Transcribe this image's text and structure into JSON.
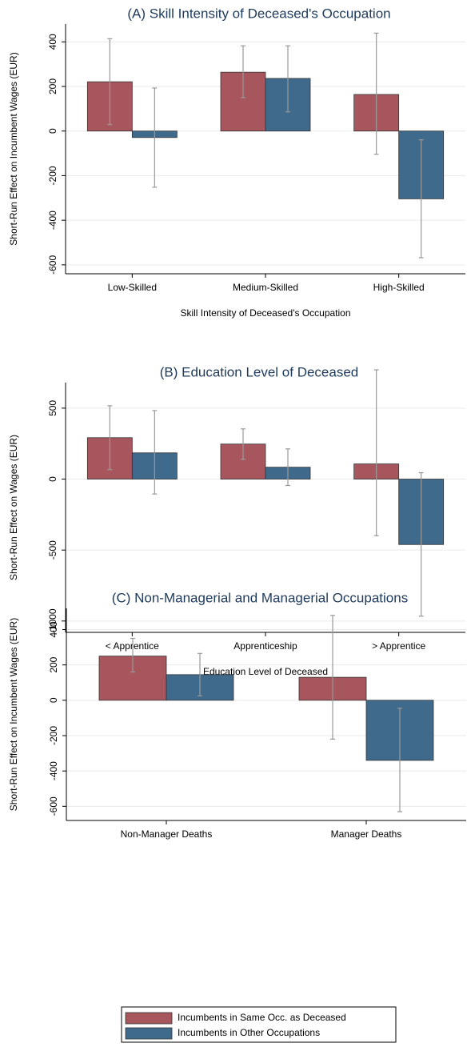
{
  "chart_data": [
    {
      "type": "bar",
      "title": "(A) Skill Intensity of Deceased's Occupation",
      "ylabel": "Short-Run Effect on Incumbent Wages (EUR)",
      "xlabel": "Skill Intensity of Deceased's Occupation",
      "categories": [
        "Low-Skilled",
        "Medium-Skilled",
        "High-Skilled"
      ],
      "series": [
        {
          "name": "Incumbents in Same Occ. as Deceased",
          "color": "#a8565e",
          "values": [
            221,
            264,
            164
          ],
          "ci_low": [
            29,
            150,
            -104
          ],
          "ci_high": [
            414,
            382,
            439
          ]
        },
        {
          "name": "Incumbents in Other Occupations",
          "color": "#3f6a8c",
          "values": [
            -29,
            236,
            -304
          ],
          "ci_low": [
            -252,
            86,
            -568
          ],
          "ci_high": [
            193,
            382,
            -39
          ]
        }
      ],
      "ylim": [
        -640,
        480
      ],
      "yticks": [
        -600,
        -400,
        -200,
        0,
        200,
        400
      ],
      "grid": true
    },
    {
      "type": "bar",
      "title": "(B) Education Level of Deceased",
      "ylabel": "Short-Run Effect on Wages (EUR)",
      "xlabel": "Education Level of Deceased",
      "categories": [
        "< Apprentice",
        "Apprenticeship",
        "> Apprentice"
      ],
      "series": [
        {
          "color": "#a8565e",
          "values": [
            292,
            247,
            107
          ],
          "ci_low": [
            67,
            140,
            -399
          ],
          "ci_high": [
            517,
            354,
            770
          ]
        },
        {
          "color": "#3f6a8c",
          "values": [
            185,
            84,
            -461
          ],
          "ci_low": [
            -105,
            -45,
            -966
          ],
          "ci_high": [
            483,
            213,
            45
          ]
        }
      ],
      "ylim": [
        -1080,
        680
      ],
      "yticks": [
        -1000,
        -500,
        0,
        500
      ],
      "grid": true
    },
    {
      "type": "bar",
      "title": "(C) Non-Managerial and Managerial Occupations",
      "ylabel": "Short-Run Effect on Incumbent Wages (EUR)",
      "categories": [
        "Non-Manager Deaths",
        "Manager Deaths"
      ],
      "series": [
        {
          "color": "#a8565e",
          "values": [
            250,
            130
          ],
          "ci_low": [
            160,
            -220
          ],
          "ci_high": [
            350,
            480
          ]
        },
        {
          "color": "#3f6a8c",
          "values": [
            145,
            -340
          ],
          "ci_low": [
            25,
            -630
          ],
          "ci_high": [
            265,
            -45
          ]
        }
      ],
      "ylim": [
        -680,
        520
      ],
      "yticks": [
        -600,
        -400,
        -200,
        0,
        200,
        400
      ],
      "grid": true
    }
  ]
}
